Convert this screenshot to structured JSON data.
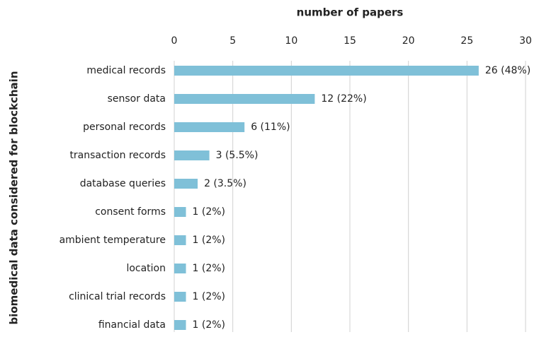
{
  "chart_data": {
    "type": "bar",
    "orientation": "horizontal",
    "title": "number of papers",
    "y_label": "biomedical data considered for blockchain",
    "categories": [
      "medical records",
      "sensor data",
      "personal records",
      "transaction records",
      "database queries",
      "consent forms",
      "ambient temperature",
      "location",
      "clinical trial records",
      "financial data"
    ],
    "values": [
      26,
      12,
      6,
      3,
      2,
      1,
      1,
      1,
      1,
      1
    ],
    "value_labels": [
      "26 (48%)",
      "12 (22%)",
      "6 (11%)",
      "3 (5.5%)",
      "2 (3.5%)",
      "1 (2%)",
      "1 (2%)",
      "1 (2%)",
      "1 (2%)",
      "1 (2%)"
    ],
    "color": "#7fc0d8",
    "xlim": [
      0,
      30
    ],
    "xticks": [
      0,
      5,
      10,
      15,
      20,
      25,
      30
    ],
    "grid": true
  }
}
